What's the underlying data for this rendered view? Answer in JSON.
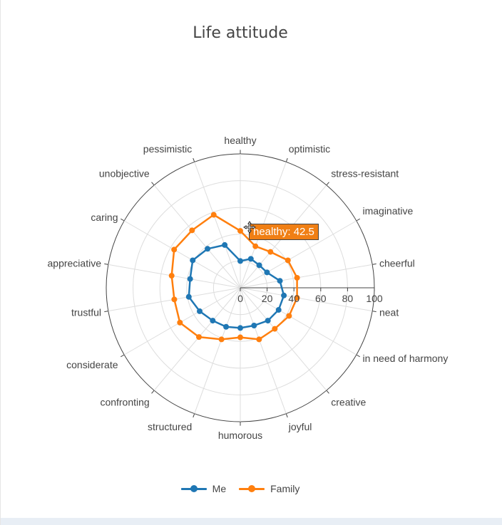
{
  "chart_data": {
    "type": "polar-line",
    "title": "Life attitude",
    "radial_axis": {
      "range": [
        0,
        100
      ],
      "ticks": [
        "0",
        "20",
        "40",
        "60",
        "80",
        "100"
      ],
      "grid": true
    },
    "angular_axis": {
      "categories": [
        "healthy",
        "optimistic",
        "stress-resistant",
        "imaginative",
        "cheerful",
        "neat",
        "in need of harmony",
        "creative",
        "joyful",
        "humorous",
        "structured",
        "confronting",
        "considerate",
        "trustful",
        "appreciative",
        "caring",
        "unobjective",
        "pessimistic"
      ],
      "direction": "clockwise",
      "rotation": "healthy at top"
    },
    "series": [
      {
        "name": "Me",
        "color": "#1f77b4",
        "values": [
          20,
          23,
          22,
          23,
          30,
          33,
          33,
          32,
          30,
          30,
          31,
          32,
          35,
          39,
          38,
          41,
          38,
          34
        ]
      },
      {
        "name": "Family",
        "color": "#ff7f0e",
        "values": [
          42.5,
          33,
          35,
          41,
          43,
          43,
          42,
          40,
          41,
          37,
          41,
          48,
          52,
          50,
          52,
          57,
          56,
          58
        ]
      }
    ],
    "legend": {
      "placement": "bottom-center",
      "items": [
        "Me",
        "Family"
      ]
    },
    "tooltip": {
      "text": "healthy: 42.5",
      "color": "#f07f14"
    }
  },
  "icons": {
    "cursor": "move-cursor-icon"
  }
}
